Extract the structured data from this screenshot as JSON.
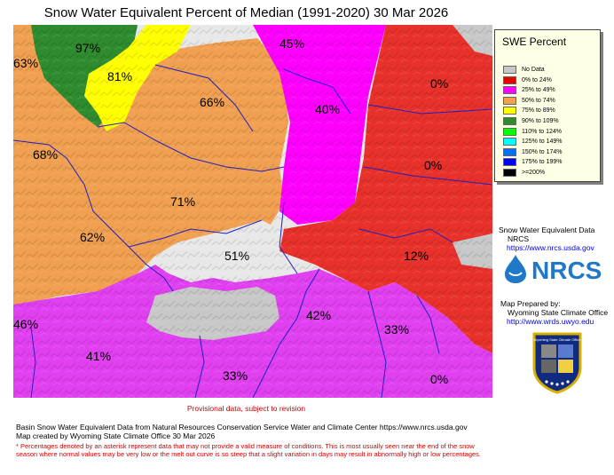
{
  "title": "Snow Water Equivalent Percent of Median (1991-2020) 30 Mar 2026",
  "legend": {
    "title": "SWE Percent",
    "items": [
      {
        "label": "No Data",
        "color": "#c8c8c8"
      },
      {
        "label": "0% to  24%",
        "color": "#e60000"
      },
      {
        "label": "25% to  49%",
        "color": "#ff00ff"
      },
      {
        "label": "50% to  74%",
        "color": "#f0a050"
      },
      {
        "label": "75% to  89%",
        "color": "#ffff00"
      },
      {
        "label": "90% to 109%",
        "color": "#2e8b2e"
      },
      {
        "label": "110% to 124%",
        "color": "#00ff00"
      },
      {
        "label": "125% to 149%",
        "color": "#00ffff"
      },
      {
        "label": "150% to 174%",
        "color": "#0070ff"
      },
      {
        "label": "175% to 199%",
        "color": "#0000ff"
      },
      {
        "label": ">=200%",
        "color": "#000000"
      }
    ]
  },
  "basins": [
    {
      "label": "97%",
      "category": "90-109"
    },
    {
      "label": "63%",
      "category": "50-74"
    },
    {
      "label": "81%",
      "category": "75-89"
    },
    {
      "label": "45%",
      "category": "25-49"
    },
    {
      "label": "0%",
      "category": "0-24"
    },
    {
      "label": "66%",
      "category": "50-74"
    },
    {
      "label": "40%",
      "category": "25-49"
    },
    {
      "label": "68%",
      "category": "50-74"
    },
    {
      "label": "0%",
      "category": "0-24"
    },
    {
      "label": "71%",
      "category": "50-74"
    },
    {
      "label": "62%",
      "category": "50-74"
    },
    {
      "label": "51%",
      "category": "50-74"
    },
    {
      "label": "12%",
      "category": "0-24"
    },
    {
      "label": "42%",
      "category": "25-49"
    },
    {
      "label": "46%",
      "category": "25-49"
    },
    {
      "label": "33%",
      "category": "25-49"
    },
    {
      "label": "41%",
      "category": "25-49"
    },
    {
      "label": "33%",
      "category": "25-49"
    },
    {
      "label": "0%",
      "category": "0-24"
    }
  ],
  "source": {
    "line1": "Snow Water Equivalent Data",
    "line2": "NRCS",
    "url": "https://www.nrcs.usda.gov",
    "logo_text": "NRCS"
  },
  "prepared": {
    "line1": "Map Prepared by:",
    "line2": "Wyoming State Climate Office",
    "url": "http://www.wrds.uwyo.edu",
    "seal_text": "Wyoming State Climate Office"
  },
  "provisional": "Provisional data, subject to revision",
  "footer": {
    "line1": "Basin Snow Water Equivalent Data from Natural Resources Conservation Service Water and Climate Center https://www.nrcs.usda.gov",
    "line2": "Map created by Wyoming State Climate Office 30 Mar 2026"
  },
  "footnote": "* Percentages denoted by an asterisk represent data that may not provide a valid measure of conditions.  This is most usually seen near the end of the snow season where normal values may be very low or the melt out curve is so steep that a slight variation in days may result in abnormally high or low percentages."
}
